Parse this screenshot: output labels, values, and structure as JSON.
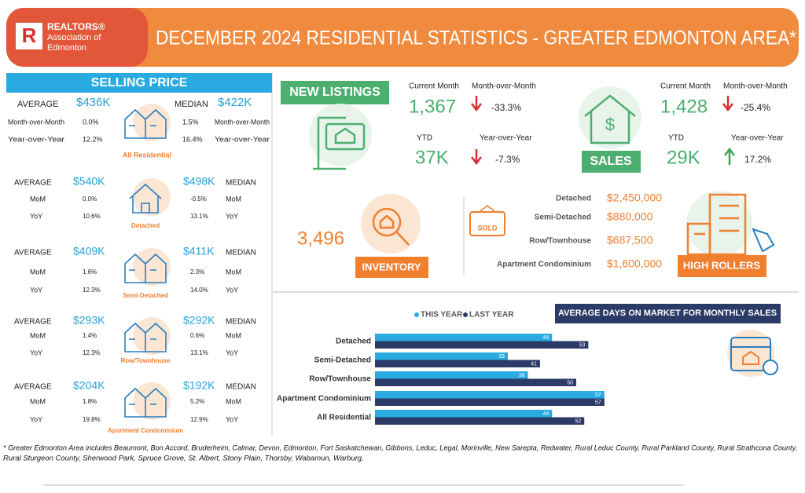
{
  "header": {
    "logo_line1": "REALTORS®",
    "logo_line2": "Association of",
    "logo_line3": "Edmonton",
    "title": "DECEMBER 2024 RESIDENTIAL STATISTICS - GREATER EDMONTON AREA*"
  },
  "selling_price": {
    "title": "SELLING PRICE",
    "groups": [
      {
        "name": "All Residential",
        "average": {
          "label": "AVERAGE",
          "value": "$436K"
        },
        "median": {
          "label": "MEDIAN",
          "value": "$422K"
        },
        "mom": {
          "label_left": "Month-over-Month",
          "avg": "0.0%",
          "median": "1.5%",
          "label_right": "Month-over-Month"
        },
        "yoy": {
          "label_left": "Year-over-Year",
          "avg": "12.2%",
          "median": "16.4%",
          "label_right": "Year-over-Year"
        }
      },
      {
        "name": "Detached",
        "average": {
          "label": "AVERAGE",
          "value": "$540K"
        },
        "median": {
          "label": "MEDIAN",
          "value": "$498K"
        },
        "mom": {
          "label_left": "MoM",
          "avg": "0.0%",
          "median": "-0.5%",
          "label_right": "MoM"
        },
        "yoy": {
          "label_left": "YoY",
          "avg": "10.6%",
          "median": "13.1%",
          "label_right": "YoY"
        }
      },
      {
        "name": "Semi-Detached",
        "average": {
          "label": "AVERAGE",
          "value": "$409K"
        },
        "median": {
          "label": "MEDIAN",
          "value": "$411K"
        },
        "mom": {
          "label_left": "MoM",
          "avg": "1.6%",
          "median": "2.3%",
          "label_right": "MoM"
        },
        "yoy": {
          "label_left": "YoY",
          "avg": "12.3%",
          "median": "14.0%",
          "label_right": "YoY"
        }
      },
      {
        "name": "Row/Townhouse",
        "average": {
          "label": "AVERAGE",
          "value": "$293K"
        },
        "median": {
          "label": "MEDIAN",
          "value": "$292K"
        },
        "mom": {
          "label_left": "MoM",
          "avg": "1.4%",
          "median": "0.6%",
          "label_right": "MoM"
        },
        "yoy": {
          "label_left": "YoY",
          "avg": "12.3%",
          "median": "13.1%",
          "label_right": "YoY"
        }
      },
      {
        "name": "Apartment Condominium",
        "average": {
          "label": "AVERAGE",
          "value": "$204K"
        },
        "median": {
          "label": "MEDIAN",
          "value": "$192K"
        },
        "mom": {
          "label_left": "MoM",
          "avg": "1.8%",
          "median": "5.2%",
          "label_right": "MoM"
        },
        "yoy": {
          "label_left": "YoY",
          "avg": "19.8%",
          "median": "12.9%",
          "label_right": "YoY"
        }
      }
    ]
  },
  "new_listings": {
    "title": "NEW  LISTINGS",
    "current_label": "Current Month",
    "current": "1,367",
    "mom_label": "Month-over-Month",
    "mom": "-33.3%",
    "ytd_label": "YTD",
    "ytd": "37K",
    "yoy_label": "Year-over-Year",
    "yoy": "-7.3%"
  },
  "sales": {
    "title": "SALES",
    "current_label": "Current Month",
    "current": "1,428",
    "mom_label": "Month-over-Month",
    "mom": "-25.4%",
    "ytd_label": "YTD",
    "ytd": "29K",
    "yoy_label": "Year-over-Year",
    "yoy": "17.2%"
  },
  "inventory": {
    "value": "3,496",
    "title": "INVENTORY"
  },
  "high_rollers": {
    "title": "HIGH ROLLERS",
    "sign": "SOLD",
    "rows": [
      {
        "label": "Detached",
        "value": "$2,450,000"
      },
      {
        "label": "Semi-Detached",
        "value": "$880,000"
      },
      {
        "label": "Row/Townhouse",
        "value": "$687,500"
      },
      {
        "label": "Apartment Condominium",
        "value": "$1,600,000"
      }
    ]
  },
  "days_on_market": {
    "title": "AVERAGE DAYS ON MARKET FOR MONTHLY SALES",
    "categories": [
      "Detached",
      "Semi-Detached",
      "Row/Townhouse",
      "Apartment Condominium",
      "All Residential"
    ],
    "series": [
      {
        "name": "THIS YEAR",
        "color": "#29abe2",
        "values": [
          44,
          33,
          38,
          57,
          44
        ]
      },
      {
        "name": "LAST YEAR",
        "color": "#2b3a67",
        "values": [
          53,
          41,
          50,
          57,
          52
        ]
      }
    ]
  },
  "footnote": [
    "* Greater Edmonton Area includes Beaumont, Bon Accord, Bruderheim, Calmar, Devon, Edmonton, Fort Saskatchewan, Gibbons, Leduc, Legal, Morinville, New Sarepta, Redwater, Rural Leduc County, Rural Parkland County, Rural Strathcona County,",
    "Rural Sturgeon County, Sherwood Park, Spruce Grove, St. Albert, Stony Plain, Thorsby, Wabamun, Warburg."
  ]
}
